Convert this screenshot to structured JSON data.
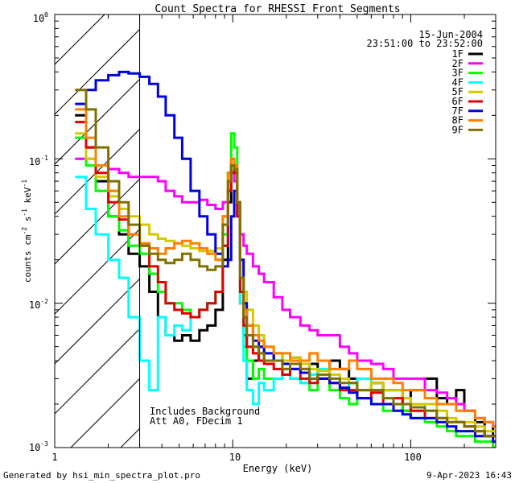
{
  "footer": {
    "generated_by": "Generated by hsi_min_spectra_plot.pro",
    "timestamp": "9-Apr-2023 16:43"
  },
  "chart_data": {
    "type": "line",
    "title": "Count Spectra for RHESSI Front Segments",
    "xlabel": "Energy (keV)",
    "ylabel_main": "counts cm",
    "ylabel_exp1": "-2",
    "ylabel_mid": " s",
    "ylabel_exp2": "-1",
    "ylabel_tail": " keV",
    "ylabel_exp3": "-1",
    "xscale": "log",
    "yscale": "log",
    "xlim": [
      1,
      300
    ],
    "ylim": [
      0.001,
      1
    ],
    "x_ticks": [
      {
        "value": 1,
        "label": "1"
      },
      {
        "value": 10,
        "label": "10"
      },
      {
        "value": 100,
        "label": "100"
      }
    ],
    "y_ticks": [
      {
        "value": 1,
        "base": "10",
        "exp": "0"
      },
      {
        "value": 0.1,
        "base": "10",
        "exp": "-1"
      },
      {
        "value": 0.01,
        "base": "10",
        "exp": "-2"
      },
      {
        "value": 0.001,
        "base": "10",
        "exp": "-3"
      }
    ],
    "date": "15-Jun-2004",
    "time_range": "23:51:00 to 23:52:00",
    "annotations": [
      "Includes Background",
      "Att A0, FDecim 1"
    ],
    "hatched_region_keV": [
      1,
      3
    ],
    "legend_position": "top-right",
    "series": [
      {
        "name": "1F",
        "color": "#000000",
        "x": [
          1.3,
          1.5,
          1.7,
          2.0,
          2.3,
          2.6,
          3.0,
          3.4,
          3.8,
          4.2,
          4.7,
          5.2,
          5.8,
          6.5,
          7.2,
          8.0,
          8.8,
          9.4,
          9.8,
          10.2,
          10.6,
          11.0,
          11.5,
          12.0,
          13,
          14,
          15,
          17,
          19,
          21,
          24,
          27,
          30,
          35,
          40,
          45,
          50,
          60,
          70,
          80,
          90,
          100,
          120,
          140,
          160,
          180,
          200,
          230,
          260,
          290
        ],
        "y": [
          0.2,
          0.12,
          0.07,
          0.04,
          0.03,
          0.022,
          0.018,
          0.012,
          0.008,
          0.006,
          0.0055,
          0.006,
          0.0055,
          0.0065,
          0.007,
          0.009,
          0.02,
          0.05,
          0.08,
          0.08,
          0.04,
          0.01,
          0.006,
          0.003,
          0.004,
          0.005,
          0.004,
          0.0045,
          0.004,
          0.0042,
          0.0035,
          0.0038,
          0.003,
          0.004,
          0.0035,
          0.003,
          0.0025,
          0.0028,
          0.0025,
          0.0025,
          0.0018,
          0.0025,
          0.003,
          0.0022,
          0.002,
          0.0025,
          0.0018,
          0.0015,
          0.0012,
          0.0014
        ]
      },
      {
        "name": "2F",
        "color": "#ff00ff",
        "x": [
          1.3,
          1.5,
          1.7,
          2.0,
          2.3,
          2.6,
          3.0,
          3.4,
          3.8,
          4.2,
          4.7,
          5.2,
          5.8,
          6.5,
          7.2,
          8.0,
          8.8,
          9.4,
          9.8,
          10.2,
          10.6,
          11.0,
          11.5,
          12.0,
          13,
          14,
          15,
          17,
          19,
          21,
          24,
          27,
          30,
          35,
          40,
          45,
          50,
          60,
          70,
          80,
          90,
          100,
          120,
          140,
          160,
          180,
          200,
          230,
          260,
          290
        ],
        "y": [
          0.1,
          0.1,
          0.09,
          0.085,
          0.08,
          0.075,
          0.075,
          0.075,
          0.07,
          0.06,
          0.055,
          0.05,
          0.05,
          0.052,
          0.048,
          0.045,
          0.05,
          0.06,
          0.08,
          0.07,
          0.05,
          0.03,
          0.025,
          0.022,
          0.018,
          0.016,
          0.014,
          0.011,
          0.009,
          0.008,
          0.007,
          0.0065,
          0.006,
          0.006,
          0.005,
          0.0045,
          0.004,
          0.0038,
          0.0035,
          0.003,
          0.003,
          0.003,
          0.0025,
          0.0024,
          0.0022,
          0.002,
          0.0018,
          0.0016,
          0.0015,
          0.0014
        ]
      },
      {
        "name": "3F",
        "color": "#00ff00",
        "x": [
          1.3,
          1.5,
          1.7,
          2.0,
          2.3,
          2.6,
          3.0,
          3.4,
          3.8,
          4.2,
          4.7,
          5.2,
          5.8,
          6.5,
          7.2,
          8.0,
          8.8,
          9.4,
          9.8,
          10.2,
          10.6,
          11.0,
          11.5,
          12.0,
          13,
          14,
          15,
          17,
          19,
          21,
          24,
          27,
          30,
          35,
          40,
          45,
          50,
          60,
          70,
          80,
          90,
          100,
          120,
          140,
          160,
          180,
          200,
          230,
          260,
          290
        ],
        "y": [
          0.14,
          0.09,
          0.06,
          0.04,
          0.032,
          0.025,
          0.022,
          0.016,
          0.012,
          0.01,
          0.01,
          0.009,
          0.008,
          0.009,
          0.01,
          0.012,
          0.03,
          0.08,
          0.15,
          0.12,
          0.05,
          0.01,
          0.005,
          0.004,
          0.003,
          0.0035,
          0.003,
          0.003,
          0.0035,
          0.003,
          0.0028,
          0.0025,
          0.003,
          0.0025,
          0.0022,
          0.002,
          0.0022,
          0.002,
          0.0018,
          0.002,
          0.0018,
          0.0016,
          0.0015,
          0.0014,
          0.0013,
          0.0012,
          0.0012,
          0.0011,
          0.0011,
          0.001
        ]
      },
      {
        "name": "4F",
        "color": "#00ffff",
        "x": [
          1.3,
          1.5,
          1.7,
          2.0,
          2.3,
          2.6,
          3.0,
          3.4,
          3.8,
          4.2,
          4.7,
          5.2,
          5.8,
          6.5,
          7.2,
          8.0,
          8.8,
          9.4,
          9.8,
          10.2,
          10.6,
          11.0,
          11.5,
          12.0,
          13,
          14,
          15,
          17,
          19,
          21,
          24,
          27,
          30,
          35,
          40,
          45,
          50,
          60,
          70,
          80,
          90,
          100,
          120,
          140,
          160,
          180,
          200,
          230,
          260,
          290
        ],
        "y": [
          0.075,
          0.045,
          0.03,
          0.02,
          0.015,
          0.008,
          0.004,
          0.0025,
          0.008,
          0.006,
          0.007,
          0.0065,
          0.008,
          0.009,
          0.01,
          0.012,
          0.025,
          0.06,
          0.1,
          0.08,
          0.04,
          0.01,
          0.004,
          0.0025,
          0.002,
          0.0028,
          0.0025,
          0.003,
          0.0032,
          0.003,
          0.0028,
          0.0032,
          0.0035,
          0.003,
          0.0025,
          0.0028,
          0.003,
          0.0025,
          0.0022,
          0.002,
          0.0022,
          0.002,
          0.0018,
          0.0016,
          0.0015,
          0.0015,
          0.0014,
          0.0013,
          0.0012,
          0.0012
        ]
      },
      {
        "name": "5F",
        "color": "#d4c800",
        "x": [
          1.3,
          1.5,
          1.7,
          2.0,
          2.3,
          2.6,
          3.0,
          3.4,
          3.8,
          4.2,
          4.7,
          5.2,
          5.8,
          6.5,
          7.2,
          8.0,
          8.8,
          9.4,
          9.8,
          10.2,
          10.6,
          11.0,
          11.5,
          12.0,
          13,
          14,
          15,
          17,
          19,
          21,
          24,
          27,
          30,
          35,
          40,
          45,
          50,
          60,
          70,
          80,
          90,
          100,
          120,
          140,
          160,
          180,
          200,
          230,
          260,
          290
        ],
        "y": [
          0.15,
          0.1,
          0.075,
          0.055,
          0.045,
          0.04,
          0.035,
          0.03,
          0.028,
          0.027,
          0.026,
          0.025,
          0.024,
          0.023,
          0.023,
          0.024,
          0.04,
          0.08,
          0.1,
          0.09,
          0.05,
          0.02,
          0.012,
          0.009,
          0.007,
          0.006,
          0.005,
          0.0045,
          0.004,
          0.0042,
          0.0038,
          0.0035,
          0.0034,
          0.0032,
          0.003,
          0.0028,
          0.0025,
          0.0028,
          0.0025,
          0.0025,
          0.0022,
          0.002,
          0.002,
          0.0018,
          0.0016,
          0.0015,
          0.0015,
          0.0014,
          0.0013,
          0.0013
        ]
      },
      {
        "name": "6F",
        "color": "#e00000",
        "x": [
          1.3,
          1.5,
          1.7,
          2.0,
          2.3,
          2.6,
          3.0,
          3.4,
          3.8,
          4.2,
          4.7,
          5.2,
          5.8,
          6.5,
          7.2,
          8.0,
          8.8,
          9.4,
          9.8,
          10.2,
          10.6,
          11.0,
          11.5,
          12.0,
          13,
          14,
          15,
          17,
          19,
          21,
          24,
          27,
          30,
          35,
          40,
          45,
          50,
          60,
          70,
          80,
          90,
          100,
          120,
          140,
          160,
          180,
          200,
          230,
          260,
          290
        ],
        "y": [
          0.18,
          0.12,
          0.08,
          0.05,
          0.038,
          0.03,
          0.025,
          0.018,
          0.014,
          0.01,
          0.009,
          0.0085,
          0.008,
          0.009,
          0.01,
          0.012,
          0.025,
          0.06,
          0.09,
          0.08,
          0.04,
          0.012,
          0.007,
          0.005,
          0.0045,
          0.004,
          0.0038,
          0.0035,
          0.0032,
          0.0035,
          0.003,
          0.0028,
          0.003,
          0.0028,
          0.0025,
          0.0025,
          0.0022,
          0.0024,
          0.002,
          0.0022,
          0.002,
          0.0018,
          0.0016,
          0.0016,
          0.0015,
          0.0015,
          0.0014,
          0.0013,
          0.0012,
          0.0012
        ]
      },
      {
        "name": "7F",
        "color": "#0000e0",
        "x": [
          1.3,
          1.5,
          1.7,
          2.0,
          2.3,
          2.6,
          3.0,
          3.4,
          3.8,
          4.2,
          4.7,
          5.2,
          5.8,
          6.5,
          7.2,
          8.0,
          8.8,
          9.4,
          9.8,
          10.2,
          10.6,
          11.0,
          11.5,
          12.0,
          13,
          14,
          15,
          17,
          19,
          21,
          24,
          27,
          30,
          35,
          40,
          45,
          50,
          60,
          70,
          80,
          90,
          100,
          120,
          140,
          160,
          180,
          200,
          230,
          260,
          290
        ],
        "y": [
          0.24,
          0.3,
          0.35,
          0.38,
          0.4,
          0.39,
          0.37,
          0.33,
          0.27,
          0.2,
          0.14,
          0.1,
          0.06,
          0.04,
          0.03,
          0.022,
          0.018,
          0.02,
          0.04,
          0.06,
          0.05,
          0.02,
          0.01,
          0.007,
          0.0055,
          0.005,
          0.0045,
          0.004,
          0.0038,
          0.0035,
          0.0033,
          0.003,
          0.003,
          0.0028,
          0.0026,
          0.0024,
          0.0022,
          0.002,
          0.002,
          0.0018,
          0.0017,
          0.0016,
          0.0016,
          0.0015,
          0.0014,
          0.0013,
          0.0013,
          0.0012,
          0.0012,
          0.0011
        ]
      },
      {
        "name": "8F",
        "color": "#ff8000",
        "x": [
          1.3,
          1.5,
          1.7,
          2.0,
          2.3,
          2.6,
          3.0,
          3.4,
          3.8,
          4.2,
          4.7,
          5.2,
          5.8,
          6.5,
          7.2,
          8.0,
          8.8,
          9.4,
          9.8,
          10.2,
          10.6,
          11.0,
          11.5,
          12.0,
          13,
          14,
          15,
          17,
          19,
          21,
          24,
          27,
          30,
          35,
          40,
          45,
          50,
          60,
          70,
          80,
          90,
          100,
          120,
          140,
          160,
          180,
          200,
          230,
          260,
          290
        ],
        "y": [
          0.22,
          0.14,
          0.09,
          0.06,
          0.04,
          0.03,
          0.026,
          0.024,
          0.022,
          0.024,
          0.026,
          0.027,
          0.026,
          0.024,
          0.022,
          0.02,
          0.04,
          0.08,
          0.1,
          0.09,
          0.05,
          0.015,
          0.009,
          0.007,
          0.006,
          0.0055,
          0.005,
          0.0045,
          0.0045,
          0.004,
          0.004,
          0.0045,
          0.004,
          0.0035,
          0.0035,
          0.004,
          0.0035,
          0.003,
          0.003,
          0.0028,
          0.0025,
          0.0025,
          0.0022,
          0.002,
          0.002,
          0.0018,
          0.0018,
          0.0016,
          0.0015,
          0.0014
        ]
      },
      {
        "name": "9F",
        "color": "#807000",
        "x": [
          1.3,
          1.5,
          1.7,
          2.0,
          2.3,
          2.6,
          3.0,
          3.4,
          3.8,
          4.2,
          4.7,
          5.2,
          5.8,
          6.5,
          7.2,
          8.0,
          8.8,
          9.4,
          9.8,
          10.2,
          10.6,
          11.0,
          11.5,
          12.0,
          13,
          14,
          15,
          17,
          19,
          21,
          24,
          27,
          30,
          35,
          40,
          45,
          50,
          60,
          70,
          80,
          90,
          100,
          120,
          140,
          160,
          180,
          200,
          230,
          260,
          290
        ],
        "y": [
          0.3,
          0.22,
          0.12,
          0.07,
          0.05,
          0.035,
          0.025,
          0.022,
          0.02,
          0.019,
          0.02,
          0.022,
          0.02,
          0.018,
          0.017,
          0.018,
          0.035,
          0.07,
          0.09,
          0.085,
          0.05,
          0.015,
          0.008,
          0.006,
          0.005,
          0.0045,
          0.004,
          0.004,
          0.0035,
          0.0038,
          0.0035,
          0.003,
          0.0032,
          0.003,
          0.0028,
          0.0028,
          0.0025,
          0.0025,
          0.0022,
          0.002,
          0.002,
          0.0019,
          0.0018,
          0.0016,
          0.0015,
          0.0015,
          0.0014,
          0.0013,
          0.0012,
          0.0012
        ]
      }
    ]
  }
}
